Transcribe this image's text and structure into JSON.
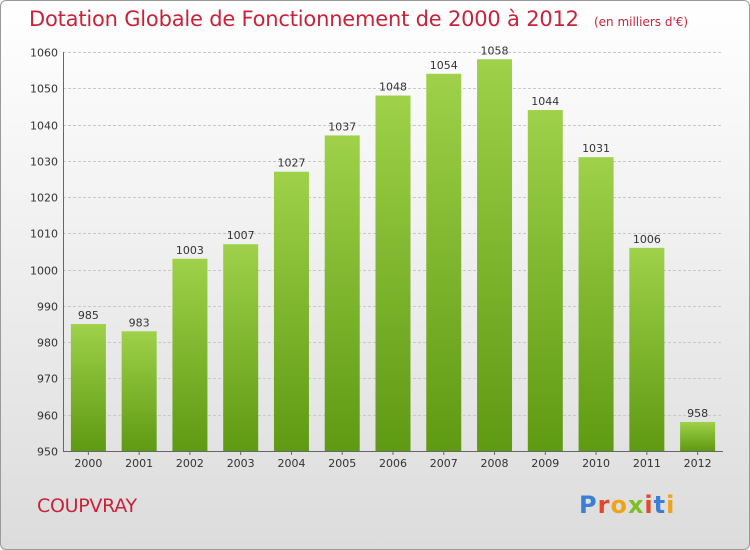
{
  "header": {
    "title": "Dotation Globale de Fonctionnement de 2000 à 2012",
    "unit_note": "(en milliers d'€)"
  },
  "footer": {
    "commune": "COUPVRAY",
    "logo_text": "Proxiti",
    "logo_colors": [
      "#3a7fd5",
      "#e2492b",
      "#f0a319",
      "#7fbf26",
      "#e2492b",
      "#3a7fd5",
      "#f0a319"
    ]
  },
  "colors": {
    "bar_light": "#9fd14a",
    "bar_dark": "#5e9a12",
    "title": "#c8233a",
    "grid": "#c9c9c9"
  },
  "chart_data": {
    "type": "bar",
    "categories": [
      "2000",
      "2001",
      "2002",
      "2003",
      "2004",
      "2005",
      "2006",
      "2007",
      "2008",
      "2009",
      "2010",
      "2011",
      "2012"
    ],
    "values": [
      985,
      983,
      1003,
      1007,
      1027,
      1037,
      1048,
      1054,
      1058,
      1044,
      1031,
      1006,
      958
    ],
    "ylim": [
      950,
      1060
    ],
    "yticks": [
      950,
      960,
      970,
      980,
      990,
      1000,
      1010,
      1020,
      1030,
      1040,
      1050,
      1060
    ],
    "grid": true
  }
}
